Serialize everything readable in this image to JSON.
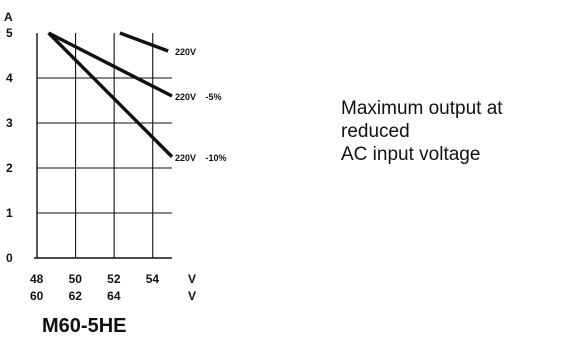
{
  "chart_data": {
    "type": "line",
    "title": "",
    "model": "M60-5HE",
    "y_axis": {
      "unit": "A",
      "range": [
        0,
        5
      ],
      "ticks": [
        0,
        1,
        2,
        3,
        4,
        5
      ]
    },
    "x_axis": {
      "range": [
        48,
        55
      ],
      "rows": [
        {
          "unit": "V",
          "ticks": [
            "48",
            "50",
            "52",
            "54"
          ]
        },
        {
          "unit": "V",
          "ticks": [
            "60",
            "62",
            "64",
            ""
          ]
        }
      ]
    },
    "grid": true,
    "series": [
      {
        "name": "220V",
        "points": [
          [
            48.6,
            5.0
          ],
          [
            54.5,
            5.0
          ]
        ],
        "line_end": [
          [
            48.6,
            5.0
          ],
          [
            52.9,
            5.0
          ]
        ]
      },
      {
        "name": "220V -5%",
        "points": [
          [
            48.6,
            5.0
          ],
          [
            55.0,
            3.6
          ]
        ]
      },
      {
        "name": "220V -10%",
        "points": [
          [
            48.6,
            5.0
          ],
          [
            55.0,
            2.25
          ]
        ]
      }
    ]
  },
  "caption": {
    "lines": [
      "Maximum output at",
      "reduced",
      "AC input voltage"
    ]
  },
  "label_parts": {
    "s1": {
      "main": "220V",
      "suffix": ""
    },
    "s2": {
      "main": "220V",
      "suffix": "-5%"
    },
    "s3": {
      "main": "220V",
      "suffix": "-10%"
    }
  }
}
